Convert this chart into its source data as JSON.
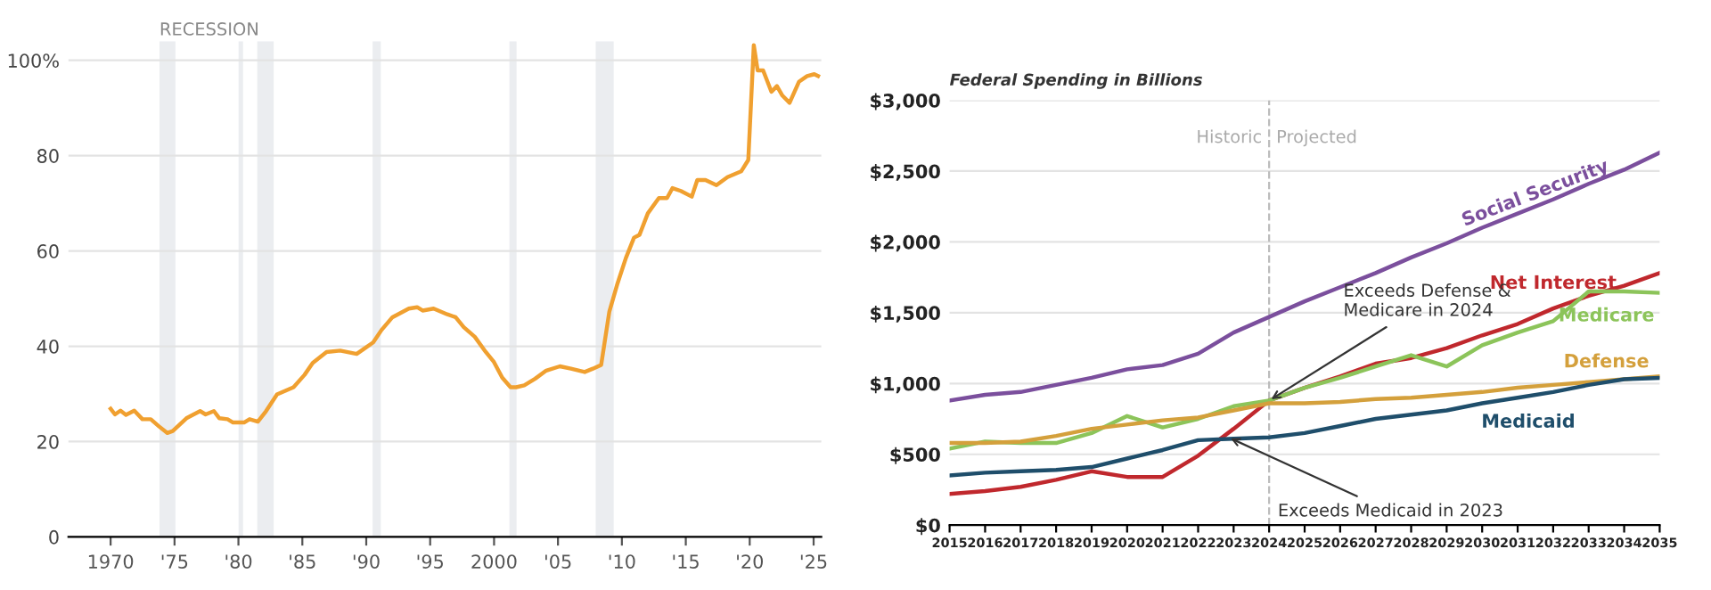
{
  "chart_data": [
    {
      "type": "line",
      "x": [
        1970.0,
        1970.34,
        1970.77,
        1971.2,
        1971.85,
        1972.49,
        1973.14,
        1973.78,
        1974.43,
        1974.86,
        1975.93,
        1977.0,
        1977.43,
        1978.08,
        1978.51,
        1979.15,
        1979.58,
        1980.44,
        1980.87,
        1981.52,
        1982.16,
        1983.02,
        1984.31,
        1985.17,
        1985.81,
        1986.89,
        1987.96,
        1989.25,
        1989.9,
        1990.54,
        1991.19,
        1992.05,
        1993.33,
        1993.98,
        1994.41,
        1995.27,
        1996.34,
        1996.99,
        1997.63,
        1998.49,
        1999.35,
        1999.99,
        2000.64,
        2001.29,
        2001.72,
        2002.36,
        2003.22,
        2004.08,
        2005.15,
        2006.01,
        2007.09,
        2007.73,
        2008.38,
        2009.02,
        2009.66,
        2010.31,
        2010.95,
        2011.38,
        2012.03,
        2012.89,
        2013.53,
        2013.96,
        2014.61,
        2015.47,
        2015.9,
        2016.54,
        2017.4,
        2018.26,
        2019.33,
        2019.89,
        2020.32,
        2020.62,
        2021.05,
        2021.7,
        2022.13,
        2022.56,
        2023.12,
        2023.85,
        2024.49,
        2025.05,
        2025.35
      ],
      "series": [
        {
          "color": "#f0a030",
          "values": [
            26.9,
            25.7,
            26.5,
            25.6,
            26.5,
            24.7,
            24.7,
            23.2,
            21.8,
            22.2,
            24.9,
            26.4,
            25.7,
            26.4,
            24.9,
            24.7,
            24.0,
            24.0,
            24.7,
            24.2,
            26.4,
            29.9,
            31.4,
            34.0,
            36.5,
            38.8,
            39.1,
            38.4,
            39.6,
            40.8,
            43.4,
            46.1,
            47.9,
            48.2,
            47.5,
            47.9,
            46.7,
            46.1,
            44.0,
            42.0,
            38.8,
            36.7,
            33.4,
            31.4,
            31.4,
            31.8,
            33.2,
            34.9,
            35.8,
            35.3,
            34.6,
            35.3,
            36.1,
            47.3,
            53.2,
            58.5,
            62.8,
            63.4,
            67.9,
            71.1,
            71.1,
            73.2,
            72.6,
            71.4,
            74.9,
            74.9,
            73.8,
            75.5,
            76.7,
            79.1,
            103.2,
            97.9,
            97.9,
            93.4,
            94.6,
            92.6,
            91.1,
            95.5,
            96.7,
            97.1,
            96.7
          ]
        }
      ],
      "xlim": [
        1966.7,
        2025.6
      ],
      "ylim": [
        0,
        104
      ],
      "xticks": [
        1970,
        {
          "value": 1975,
          "label": "'75"
        },
        {
          "value": 1980,
          "label": "'80"
        },
        {
          "value": 1985,
          "label": "'85"
        },
        {
          "value": 1990,
          "label": "'90"
        },
        {
          "value": 1995,
          "label": "'95"
        },
        2000,
        {
          "value": 2005,
          "label": "'05"
        },
        {
          "value": 2010,
          "label": "'10"
        },
        {
          "value": 2015,
          "label": "'15"
        },
        {
          "value": 2020,
          "label": "'20"
        },
        {
          "value": 2025,
          "label": "'25"
        }
      ],
      "yticks": [
        0,
        20,
        40,
        60,
        80,
        {
          "value": 100,
          "label": "100%"
        }
      ],
      "bands": [
        {
          "axis": "x",
          "from": 1973.82,
          "to": 1975.07,
          "label": "RECESSION",
          "color": "#ebedf0"
        },
        {
          "axis": "x",
          "from": 1980.01,
          "to": 1980.36,
          "color": "#ebedf0"
        },
        {
          "axis": "x",
          "from": 1981.47,
          "to": 1982.76,
          "color": "#ebedf0"
        },
        {
          "axis": "x",
          "from": 1990.5,
          "to": 1991.14,
          "color": "#ebedf0"
        },
        {
          "axis": "x",
          "from": 2001.2,
          "to": 2001.76,
          "color": "#ebedf0"
        },
        {
          "axis": "x",
          "from": 2007.95,
          "to": 2009.36,
          "color": "#ebedf0"
        }
      ],
      "grid": "y"
    },
    {
      "type": "line",
      "title": "Federal Spending in Billions",
      "x": [
        2015,
        2016,
        2017,
        2018,
        2019,
        2020,
        2021,
        2022,
        2023,
        2024,
        2025,
        2026,
        2027,
        2028,
        2029,
        2030,
        2031,
        2032,
        2033,
        2034,
        2035
      ],
      "series": [
        {
          "name": "Social Security",
          "color": "#7b4f9d",
          "values": [
            880,
            920,
            940,
            990,
            1040,
            1100,
            1130,
            1210,
            1360,
            1470,
            1580,
            1680,
            1780,
            1890,
            1990,
            2100,
            2200,
            2300,
            2410,
            2510,
            2630
          ]
        },
        {
          "name": "Net Interest",
          "color": "#c0282d",
          "values": [
            220,
            240,
            270,
            320,
            380,
            340,
            340,
            490,
            680,
            880,
            970,
            1050,
            1140,
            1180,
            1250,
            1340,
            1420,
            1530,
            1620,
            1690,
            1780
          ]
        },
        {
          "name": "Medicare",
          "color": "#8cc45a",
          "values": [
            540,
            590,
            580,
            580,
            650,
            770,
            690,
            750,
            840,
            880,
            970,
            1040,
            1120,
            1200,
            1120,
            1270,
            1360,
            1440,
            1650,
            1650,
            1640
          ]
        },
        {
          "name": "Defense",
          "color": "#d4a03c",
          "values": [
            580,
            580,
            590,
            630,
            680,
            710,
            740,
            760,
            810,
            860,
            860,
            870,
            890,
            900,
            920,
            940,
            970,
            990,
            1010,
            1030,
            1050
          ]
        },
        {
          "name": "Medicaid",
          "color": "#1f4e6b",
          "values": [
            350,
            370,
            380,
            390,
            410,
            470,
            530,
            600,
            610,
            620,
            650,
            700,
            750,
            780,
            810,
            860,
            900,
            940,
            990,
            1030,
            1040
          ]
        }
      ],
      "xlim": [
        2015,
        2035
      ],
      "ylim": [
        0,
        3000
      ],
      "xticks": [
        2015,
        2016,
        2017,
        2018,
        2019,
        2020,
        2021,
        2022,
        2023,
        2024,
        2025,
        2026,
        2027,
        2028,
        2029,
        2030,
        2031,
        2032,
        2033,
        2034,
        2035
      ],
      "yticks": [
        {
          "value": 0,
          "label": "$0"
        },
        {
          "value": 500,
          "label": "$500"
        },
        {
          "value": 1000,
          "label": "$1,000"
        },
        {
          "value": 1500,
          "label": "$1,500"
        },
        {
          "value": 2000,
          "label": "$2,000"
        },
        {
          "value": 2500,
          "label": "$2,500"
        },
        {
          "value": 3000,
          "label": "$3,000"
        }
      ],
      "ref_lines": [
        {
          "axis": "x",
          "value": 2024,
          "color": "#bbbbbb",
          "line_style": "dashed"
        }
      ],
      "annotations": [
        {
          "text": "Exceeds Defense &\nMedicare in 2024",
          "x": 2024,
          "y": 880
        },
        {
          "text": "Exceeds Medicaid in 2023",
          "x": 2022.85,
          "y": 620
        },
        "Historic",
        "Projected"
      ],
      "grid": "y"
    }
  ]
}
